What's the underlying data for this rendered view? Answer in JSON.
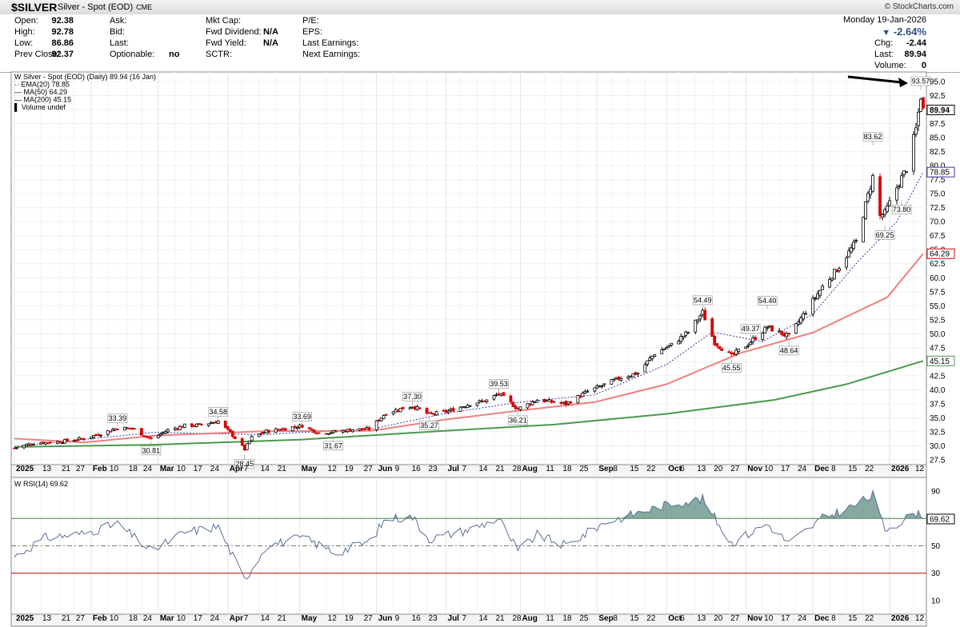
{
  "header": {
    "symbol": "$SILVER",
    "name": "Silver - Spot (EOD)",
    "exchange": "CME",
    "brand": "© StockCharts.com",
    "date": "Monday  19-Jan-2026",
    "pct_change": "-2.64%",
    "chg_label": "Chg:",
    "chg": "-2.44",
    "last_label": "Last:",
    "last": "89.94",
    "volume_label": "Volume:",
    "volume": "0"
  },
  "quote": {
    "open_label": "Open:",
    "open": "92.38",
    "high_label": "High:",
    "high": "92.78",
    "low_label": "Low:",
    "low": "86.86",
    "prev_label": "Prev Close:",
    "prev": "92.37",
    "ask_label": "Ask:",
    "bid_label": "Bid:",
    "last_label": "Last:",
    "optionable_label": "Optionable:",
    "optionable": "no",
    "mktcap_label": "Mkt Cap:",
    "fwddiv_label": "Fwd Dividend:",
    "fwddiv": "N/A",
    "fwdyield_label": "Fwd Yield:",
    "fwdyield": "N/A",
    "sctr_label": "SCTR:",
    "pe_label": "P/E:",
    "eps_label": "EPS:",
    "lastearn_label": "Last Earnings:",
    "nextearn_label": "Next Earnings:"
  },
  "legend": {
    "main": "Silver - Spot (EOD) (Daily) 89.94 (16 Jan)",
    "ema": "EMA(20) 78.85",
    "ma50": "MA(50) 64.29",
    "ma200": "MA(200) 45.15",
    "vol": "Volume undef",
    "rsi": "RSI(14) 69.62"
  },
  "colors": {
    "up": "#000000",
    "down": "#d40000",
    "ema": "#3a3aa8",
    "ma50": "#ec6a6a",
    "ma200": "#4a9a4a",
    "rsi_line": "#5b6f97",
    "rsi_fill": "#5e8e80",
    "rsi_70": "#3a8a3a",
    "rsi_30": "#c00000",
    "rsi_50": "#777777"
  },
  "chart_data": [
    {
      "type": "line",
      "subtype": "candlestick",
      "title": "Silver - Spot (EOD) (Daily) 89.94 (16 Jan)",
      "x_labels": [
        "2025",
        "13",
        "21",
        "27",
        "Feb",
        "10",
        "18",
        "24",
        "Mar",
        "10",
        "17",
        "24",
        "Apr",
        "7",
        "14",
        "21",
        "May",
        "12",
        "19",
        "27",
        "Jun",
        "9",
        "16",
        "23",
        "Jul",
        "7",
        "14",
        "21",
        "28",
        "Aug",
        "11",
        "18",
        "25",
        "Sep",
        "8",
        "15",
        "22",
        "Oct",
        "6",
        "13",
        "20",
        "27",
        "Nov",
        "10",
        "17",
        "24",
        "Dec",
        "8",
        "15",
        "22",
        "2026",
        "12"
      ],
      "x_range": [
        "2025-01-02",
        "2026-01-16"
      ],
      "ylim": [
        27.5,
        95.0
      ],
      "y_ticks": [
        27.5,
        30.0,
        32.5,
        35.0,
        37.5,
        40.0,
        42.5,
        45.0,
        47.5,
        50.0,
        52.5,
        55.0,
        57.5,
        60.0,
        62.5,
        65.0,
        67.5,
        70.0,
        72.5,
        75.0,
        77.5,
        80.0,
        82.5,
        85.0,
        87.5,
        90.0,
        92.5,
        95.0
      ],
      "price_path": [
        [
          "2025-01-02",
          29.6
        ],
        [
          "2025-01-10",
          30.5
        ],
        [
          "2025-01-20",
          30.7
        ],
        [
          "2025-01-31",
          31.3
        ],
        [
          "2025-02-07",
          32.2
        ],
        [
          "2025-02-14",
          33.2
        ],
        [
          "2025-02-20",
          33.1
        ],
        [
          "2025-02-28",
          31.2
        ],
        [
          "2025-03-07",
          32.8
        ],
        [
          "2025-03-14",
          33.6
        ],
        [
          "2025-03-20",
          33.7
        ],
        [
          "2025-03-28",
          34.4
        ],
        [
          "2025-04-03",
          31.9
        ],
        [
          "2025-04-08",
          29.4
        ],
        [
          "2025-04-11",
          31.5
        ],
        [
          "2025-04-17",
          32.6
        ],
        [
          "2025-04-25",
          33.1
        ],
        [
          "2025-05-02",
          33.6
        ],
        [
          "2025-05-09",
          32.3
        ],
        [
          "2025-05-16",
          32.5
        ],
        [
          "2025-05-23",
          32.9
        ],
        [
          "2025-05-30",
          33.0
        ],
        [
          "2025-06-06",
          35.9
        ],
        [
          "2025-06-11",
          36.5
        ],
        [
          "2025-06-17",
          37.1
        ],
        [
          "2025-06-24",
          35.6
        ],
        [
          "2025-07-02",
          36.2
        ],
        [
          "2025-07-11",
          37.5
        ],
        [
          "2025-07-18",
          38.1
        ],
        [
          "2025-07-23",
          39.3
        ],
        [
          "2025-07-31",
          36.6
        ],
        [
          "2025-08-08",
          38.2
        ],
        [
          "2025-08-20",
          37.5
        ],
        [
          "2025-08-29",
          39.7
        ],
        [
          "2025-09-05",
          40.9
        ],
        [
          "2025-09-12",
          42.2
        ],
        [
          "2025-09-19",
          43.0
        ],
        [
          "2025-09-26",
          46.5
        ],
        [
          "2025-10-03",
          48.0
        ],
        [
          "2025-10-10",
          50.3
        ],
        [
          "2025-10-16",
          53.8
        ],
        [
          "2025-10-21",
          48.5
        ],
        [
          "2025-10-28",
          46.0
        ],
        [
          "2025-11-04",
          48.2
        ],
        [
          "2025-11-12",
          51.2
        ],
        [
          "2025-11-14",
          50.8
        ],
        [
          "2025-11-21",
          49.5
        ],
        [
          "2025-11-28",
          54.0
        ],
        [
          "2025-12-05",
          58.4
        ],
        [
          "2025-12-12",
          62.0
        ],
        [
          "2025-12-19",
          66.4
        ],
        [
          "2025-12-26",
          78.0
        ],
        [
          "2025-12-29",
          71.0
        ],
        [
          "2025-12-31",
          71.5
        ],
        [
          "2026-01-06",
          77.0
        ],
        [
          "2026-01-09",
          79.5
        ],
        [
          "2026-01-13",
          86.5
        ],
        [
          "2026-01-15",
          92.4
        ],
        [
          "2026-01-16",
          89.94
        ]
      ],
      "annotations": [
        {
          "date": "2025-02-14",
          "label": "33.39",
          "pos": "above"
        },
        {
          "date": "2025-02-28",
          "label": "30.81",
          "pos": "below"
        },
        {
          "date": "2025-03-28",
          "label": "34.58",
          "pos": "above"
        },
        {
          "date": "2025-04-08",
          "label": "28.45",
          "pos": "below"
        },
        {
          "date": "2025-05-02",
          "label": "33.69",
          "pos": "above"
        },
        {
          "date": "2025-05-15",
          "label": "31.67",
          "pos": "below"
        },
        {
          "date": "2025-06-17",
          "label": "37.30",
          "pos": "above"
        },
        {
          "date": "2025-06-24",
          "label": "35.27",
          "pos": "below"
        },
        {
          "date": "2025-07-23",
          "label": "39.53",
          "pos": "above"
        },
        {
          "date": "2025-07-31",
          "label": "36.21",
          "pos": "below"
        },
        {
          "date": "2025-10-16",
          "label": "54.49",
          "pos": "above"
        },
        {
          "date": "2025-10-28",
          "label": "45.55",
          "pos": "below"
        },
        {
          "date": "2025-11-05",
          "label": "49.37",
          "pos": "above"
        },
        {
          "date": "2025-11-12",
          "label": "54.40",
          "pos": "above"
        },
        {
          "date": "2025-11-21",
          "label": "48.64",
          "pos": "below"
        },
        {
          "date": "2025-12-26",
          "label": "83.62",
          "pos": "above"
        },
        {
          "date": "2025-12-31",
          "label": "69.25",
          "pos": "below"
        },
        {
          "date": "2026-01-07",
          "label": "73.80",
          "pos": "below"
        },
        {
          "date": "2026-01-15",
          "label": "93.57",
          "pos": "above"
        }
      ],
      "series": [
        {
          "name": "EMA(20)",
          "last": 78.85,
          "values": [
            [
              "2025-01-02",
              29.9
            ],
            [
              "2025-03-01",
              32.4
            ],
            [
              "2025-04-15",
              32.0
            ],
            [
              "2025-06-01",
              33.1
            ],
            [
              "2025-07-01",
              35.8
            ],
            [
              "2025-08-01",
              37.8
            ],
            [
              "2025-09-01",
              39.1
            ],
            [
              "2025-10-01",
              44.5
            ],
            [
              "2025-10-20",
              50.3
            ],
            [
              "2025-11-10",
              48.6
            ],
            [
              "2025-12-01",
              53.5
            ],
            [
              "2025-12-20",
              63.0
            ],
            [
              "2026-01-05",
              70.0
            ],
            [
              "2026-01-16",
              78.85
            ]
          ]
        },
        {
          "name": "MA(50)",
          "last": 64.29,
          "values": [
            [
              "2025-01-02",
              31.3
            ],
            [
              "2025-01-31",
              30.6
            ],
            [
              "2025-03-01",
              31.8
            ],
            [
              "2025-04-15",
              32.6
            ],
            [
              "2025-05-31",
              32.7
            ],
            [
              "2025-07-01",
              34.7
            ],
            [
              "2025-08-01",
              36.3
            ],
            [
              "2025-09-01",
              37.8
            ],
            [
              "2025-10-01",
              41.0
            ],
            [
              "2025-11-01",
              46.6
            ],
            [
              "2025-12-01",
              50.2
            ],
            [
              "2026-01-01",
              56.5
            ],
            [
              "2026-01-16",
              64.29
            ]
          ]
        },
        {
          "name": "MA(200)",
          "last": 45.15,
          "values": [
            [
              "2025-01-02",
              29.8
            ],
            [
              "2025-03-01",
              30.2
            ],
            [
              "2025-05-01",
              31.1
            ],
            [
              "2025-07-01",
              32.7
            ],
            [
              "2025-08-15",
              33.8
            ],
            [
              "2025-10-01",
              35.7
            ],
            [
              "2025-11-15",
              38.2
            ],
            [
              "2025-12-15",
              41.0
            ],
            [
              "2026-01-16",
              45.15
            ]
          ]
        }
      ]
    },
    {
      "type": "line",
      "title": "RSI(14) 69.62",
      "ylim": [
        0,
        100
      ],
      "y_ticks": [
        10,
        30,
        50,
        70,
        90
      ],
      "reference_lines": [
        70,
        50,
        30
      ],
      "last": 69.62,
      "values": [
        [
          "2025-01-02",
          42
        ],
        [
          "2025-01-15",
          56
        ],
        [
          "2025-01-31",
          59
        ],
        [
          "2025-02-14",
          66
        ],
        [
          "2025-02-28",
          46
        ],
        [
          "2025-03-14",
          60
        ],
        [
          "2025-03-28",
          64
        ],
        [
          "2025-04-08",
          25
        ],
        [
          "2025-04-17",
          50
        ],
        [
          "2025-05-02",
          56
        ],
        [
          "2025-05-16",
          45
        ],
        [
          "2025-05-30",
          53
        ],
        [
          "2025-06-06",
          70
        ],
        [
          "2025-06-17",
          71
        ],
        [
          "2025-06-24",
          55
        ],
        [
          "2025-07-11",
          62
        ],
        [
          "2025-07-23",
          70
        ],
        [
          "2025-07-31",
          46
        ],
        [
          "2025-08-08",
          58
        ],
        [
          "2025-08-20",
          50
        ],
        [
          "2025-09-05",
          67
        ],
        [
          "2025-09-19",
          74
        ],
        [
          "2025-10-03",
          81
        ],
        [
          "2025-10-16",
          84
        ],
        [
          "2025-10-28",
          52
        ],
        [
          "2025-11-12",
          66
        ],
        [
          "2025-11-21",
          52
        ],
        [
          "2025-12-05",
          70
        ],
        [
          "2025-12-19",
          80
        ],
        [
          "2025-12-26",
          87
        ],
        [
          "2025-12-31",
          62
        ],
        [
          "2026-01-07",
          68
        ],
        [
          "2026-01-13",
          74
        ],
        [
          "2026-01-16",
          69.62
        ]
      ]
    }
  ]
}
